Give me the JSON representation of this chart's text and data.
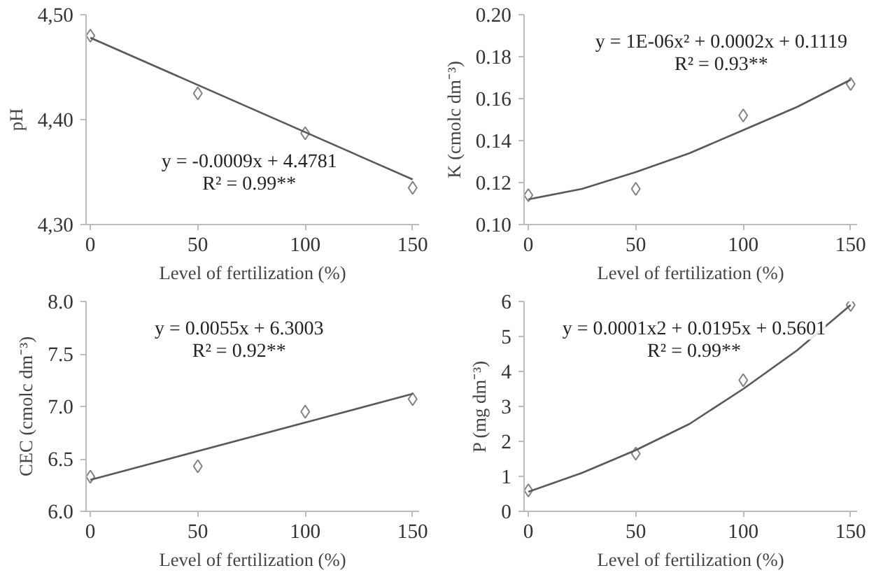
{
  "chart_data": [
    {
      "type": "scatter",
      "xlabel": "Level of fertilization (%)",
      "ylabel": "pH",
      "x": [
        0,
        50,
        100,
        150
      ],
      "xlim": [
        -2,
        153
      ],
      "xticks": [
        0,
        50,
        100,
        150
      ],
      "ylim": [
        4.3,
        4.5
      ],
      "yticks": [
        {
          "value": 4.3,
          "label": "4,30"
        },
        {
          "value": 4.4,
          "label": "4,40"
        },
        {
          "value": 4.5,
          "label": "4,50"
        }
      ],
      "annotations": [
        "y = -0.0009x + 4.4781",
        "R² = 0.99**"
      ],
      "series": [
        {
          "color": "#808080",
          "marker": "diamond",
          "values": [
            4.48,
            4.425,
            4.387,
            4.335
          ]
        },
        {
          "type": "line",
          "color": "#595959",
          "x": [
            0,
            150
          ],
          "values": [
            4.478,
            4.343
          ]
        }
      ]
    },
    {
      "type": "scatter",
      "xlabel": "Level of fertilization (%)",
      "ylabel": "K (cmolc dm⁻³)",
      "x": [
        0,
        50,
        100,
        150
      ],
      "xlim": [
        -2,
        153
      ],
      "xticks": [
        0,
        50,
        100,
        150
      ],
      "ylim": [
        0.1,
        0.2
      ],
      "yticks": [
        {
          "value": 0.1,
          "label": "0.10"
        },
        {
          "value": 0.12,
          "label": "0.12"
        },
        {
          "value": 0.14,
          "label": "0.14"
        },
        {
          "value": 0.16,
          "label": "0.16"
        },
        {
          "value": 0.18,
          "label": "0.18"
        },
        {
          "value": 0.2,
          "label": "0.20"
        }
      ],
      "annotations": [
        "y = 1E-06x² + 0.0002x + 0.1119",
        "R² = 0.93**"
      ],
      "series": [
        {
          "color": "#808080",
          "marker": "diamond",
          "values": [
            0.114,
            0.117,
            0.152,
            0.167
          ]
        },
        {
          "type": "line",
          "color": "#595959",
          "x": [
            0,
            25,
            50,
            75,
            100,
            125,
            150
          ],
          "values": [
            0.112,
            0.117,
            0.125,
            0.134,
            0.145,
            0.156,
            0.169
          ]
        }
      ]
    },
    {
      "type": "scatter",
      "xlabel": "Level of fertilization (%)",
      "ylabel": "CEC (cmolc dm⁻³)",
      "x": [
        0,
        50,
        100,
        150
      ],
      "xlim": [
        -2,
        153
      ],
      "xticks": [
        0,
        50,
        100,
        150
      ],
      "ylim": [
        6.0,
        8.0
      ],
      "yticks": [
        {
          "value": 6.0,
          "label": "6.0"
        },
        {
          "value": 6.5,
          "label": "6.5"
        },
        {
          "value": 7.0,
          "label": "7.0"
        },
        {
          "value": 7.5,
          "label": "7.5"
        },
        {
          "value": 8.0,
          "label": "8.0"
        }
      ],
      "annotations": [
        "y = 0.0055x + 6.3003",
        "R² = 0.92**"
      ],
      "series": [
        {
          "color": "#808080",
          "marker": "diamond",
          "values": [
            6.33,
            6.43,
            6.95,
            7.07
          ]
        },
        {
          "type": "line",
          "color": "#595959",
          "x": [
            0,
            150
          ],
          "values": [
            6.3,
            7.12
          ]
        }
      ]
    },
    {
      "type": "scatter",
      "xlabel": "Level of fertilization (%)",
      "ylabel": "P (mg dm⁻³)",
      "x": [
        0,
        50,
        100,
        150
      ],
      "xlim": [
        -2,
        153
      ],
      "xticks": [
        0,
        50,
        100,
        150
      ],
      "ylim": [
        0,
        6
      ],
      "yticks": [
        0,
        1,
        2,
        3,
        4,
        5,
        6
      ],
      "annotations": [
        "y = 0.0001x2 + 0.0195x + 0.5601",
        "R² = 0.99**"
      ],
      "series": [
        {
          "color": "#808080",
          "marker": "diamond",
          "values": [
            0.6,
            1.65,
            3.75,
            5.9
          ]
        },
        {
          "type": "line",
          "color": "#595959",
          "x": [
            0,
            25,
            50,
            75,
            100,
            125,
            150
          ],
          "values": [
            0.56,
            1.1,
            1.75,
            2.5,
            3.5,
            4.6,
            5.9
          ]
        }
      ]
    }
  ]
}
